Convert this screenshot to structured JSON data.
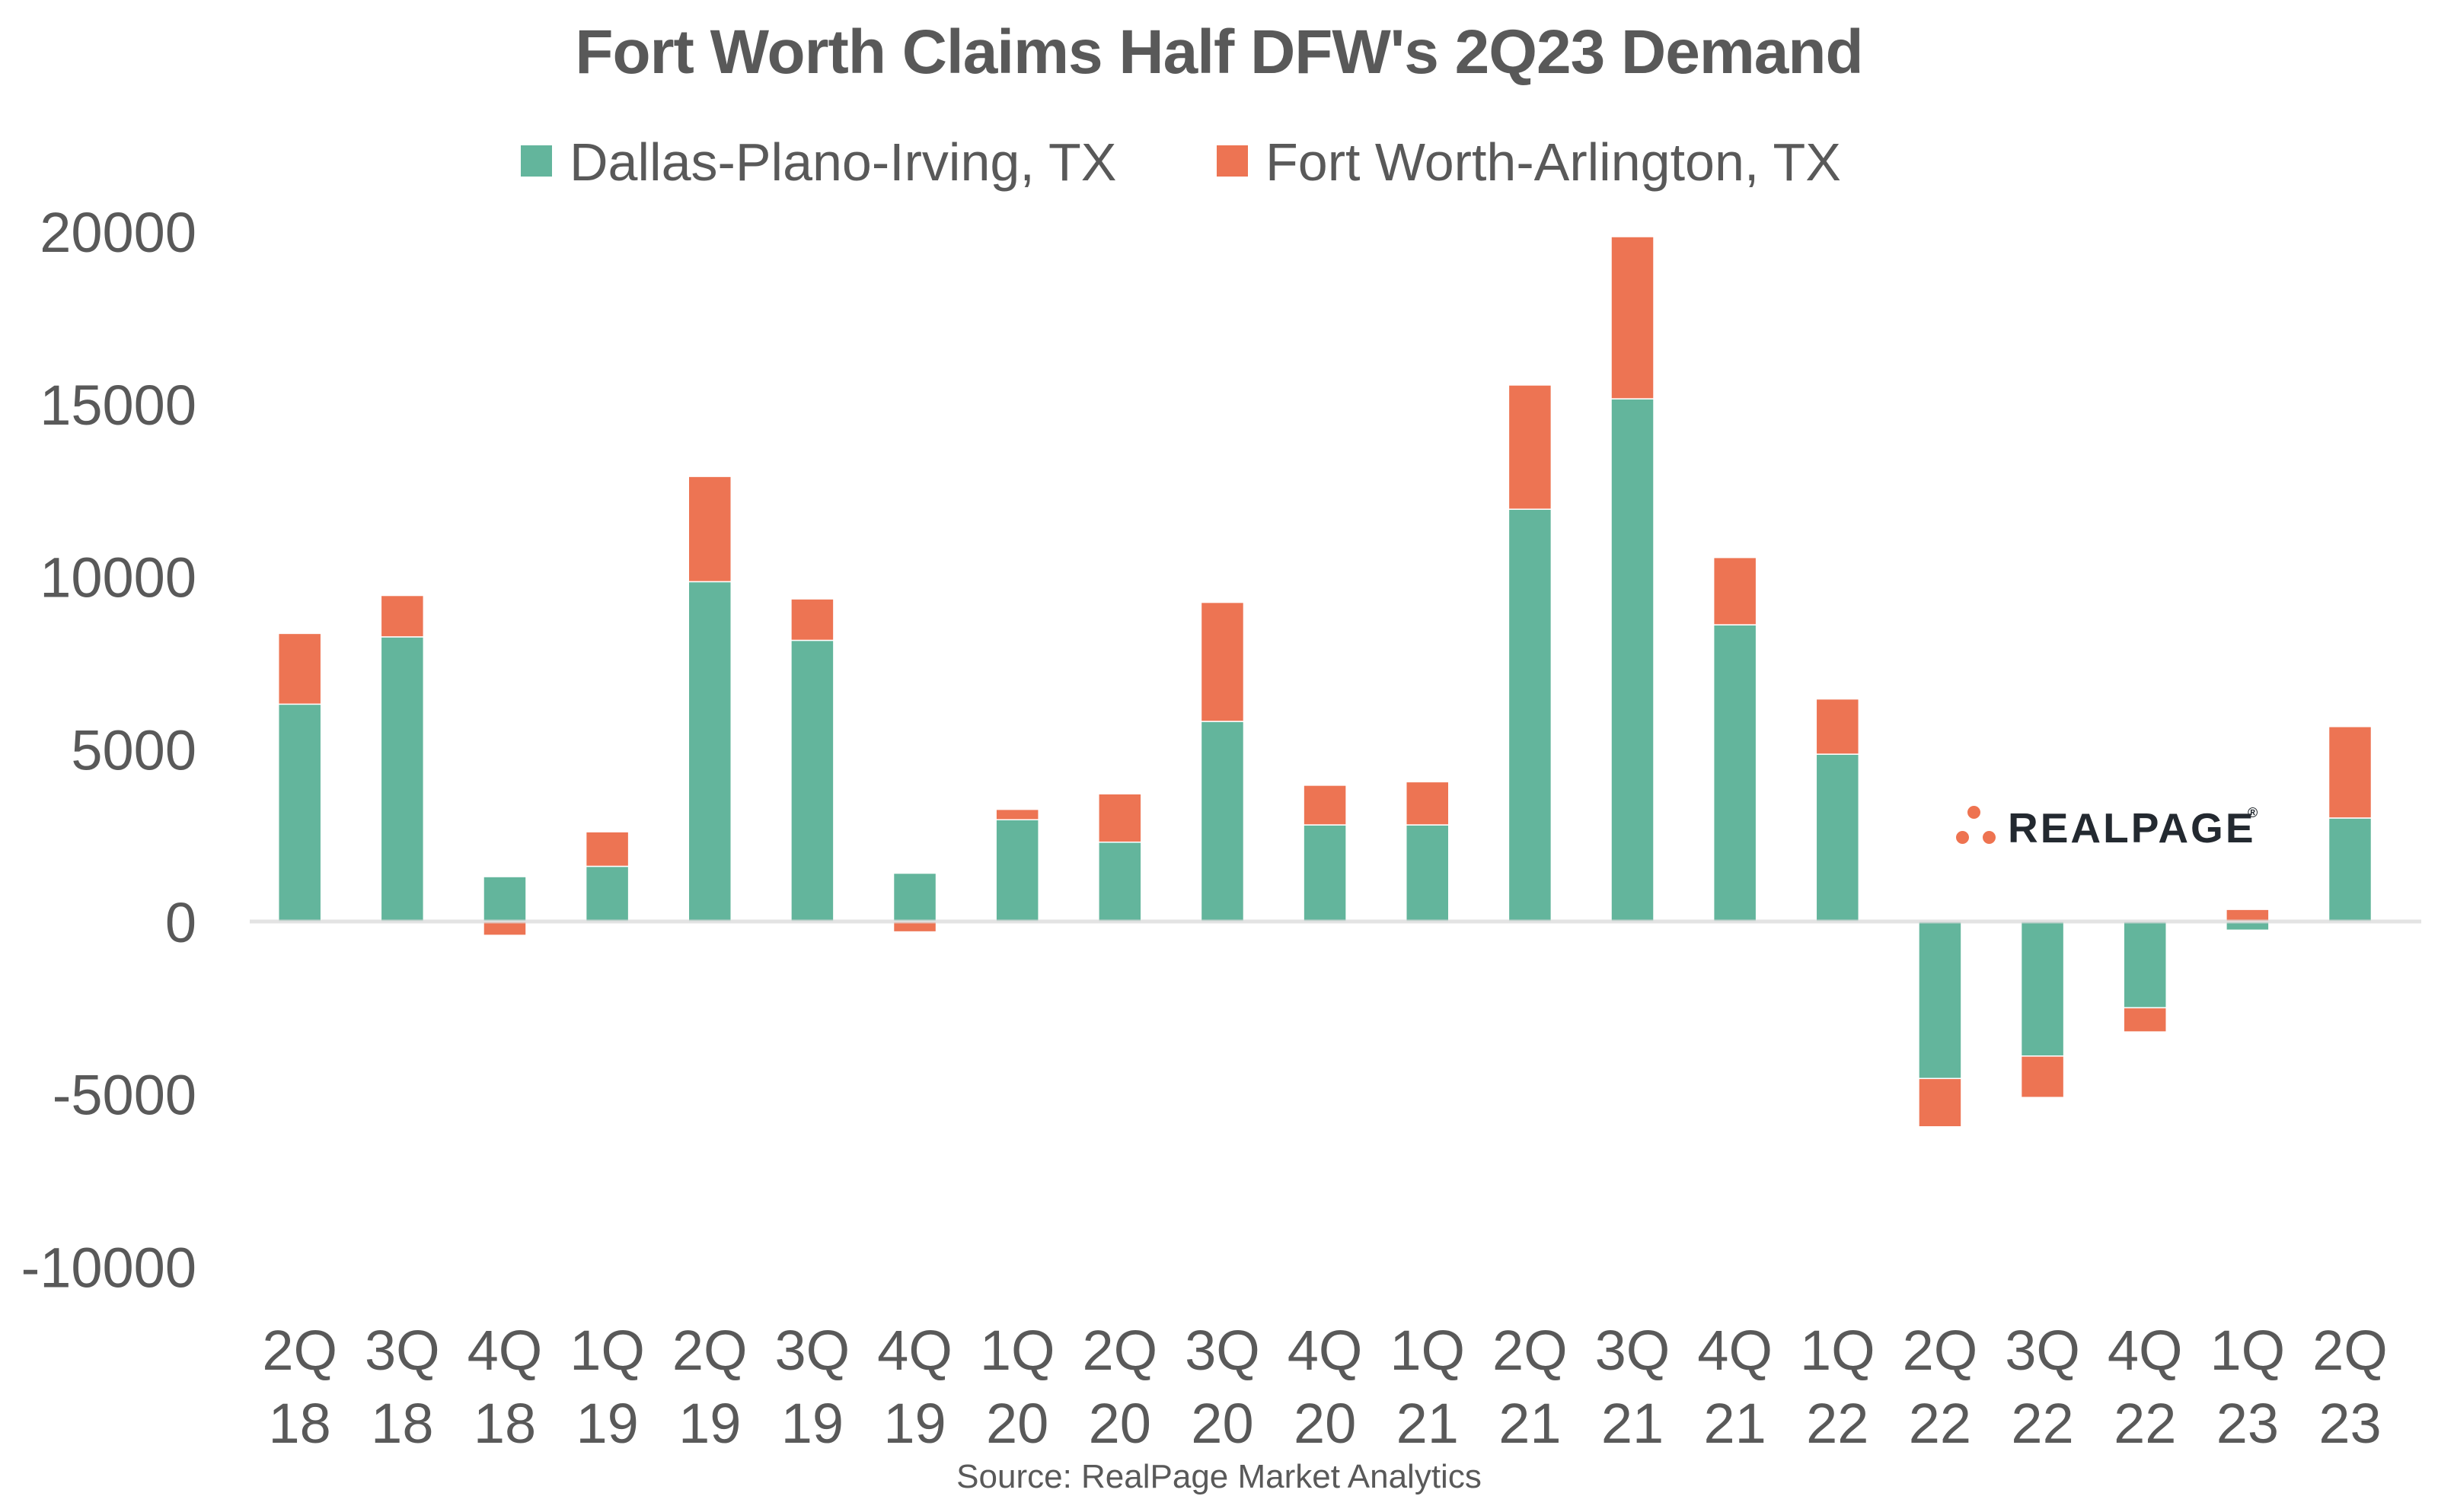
{
  "title": "Fort Worth Claims Half DFW's 2Q23 Demand",
  "source": "Source: RealPage Market Analytics",
  "logo": {
    "text": "REALPAGE",
    "registered": "®",
    "dot_color": "#EE7350",
    "text_color": "#232930"
  },
  "colors": {
    "text_gray": "#595959",
    "axis_line": "#D9D9D9",
    "background": "#FFFFFF",
    "dallas_teal": "#63B59C",
    "fortworth_orange": "#ED7453"
  },
  "chart_data": {
    "type": "bar",
    "stacked": true,
    "title": "Fort Worth Claims Half DFW's 2Q23 Demand",
    "xlabel": "",
    "ylabel": "",
    "grid": false,
    "legend_position": "top",
    "ylim": [
      -10000,
      20000
    ],
    "y_ticks": [
      20000,
      15000,
      10000,
      5000,
      0,
      -5000,
      -10000
    ],
    "categories": [
      {
        "quarter": "2Q",
        "year": "18"
      },
      {
        "quarter": "3Q",
        "year": "18"
      },
      {
        "quarter": "4Q",
        "year": "18"
      },
      {
        "quarter": "1Q",
        "year": "19"
      },
      {
        "quarter": "2Q",
        "year": "19"
      },
      {
        "quarter": "3Q",
        "year": "19"
      },
      {
        "quarter": "4Q",
        "year": "19"
      },
      {
        "quarter": "1Q",
        "year": "20"
      },
      {
        "quarter": "2Q",
        "year": "20"
      },
      {
        "quarter": "3Q",
        "year": "20"
      },
      {
        "quarter": "4Q",
        "year": "20"
      },
      {
        "quarter": "1Q",
        "year": "21"
      },
      {
        "quarter": "2Q",
        "year": "21"
      },
      {
        "quarter": "3Q",
        "year": "21"
      },
      {
        "quarter": "4Q",
        "year": "21"
      },
      {
        "quarter": "1Q",
        "year": "22"
      },
      {
        "quarter": "2Q",
        "year": "22"
      },
      {
        "quarter": "3Q",
        "year": "22"
      },
      {
        "quarter": "4Q",
        "year": "22"
      },
      {
        "quarter": "1Q",
        "year": "23"
      },
      {
        "quarter": "2Q",
        "year": "23"
      }
    ],
    "series": [
      {
        "name": "Dallas-Plano-Irving, TX",
        "color": "#63B59C",
        "values": [
          6300,
          8250,
          1300,
          1600,
          9850,
          8150,
          1400,
          2950,
          2300,
          5800,
          2800,
          2800,
          11950,
          15150,
          8600,
          4850,
          -4550,
          -3900,
          -2500,
          -250,
          3000
        ]
      },
      {
        "name": "Fort Worth-Arlington, TX",
        "color": "#ED7453",
        "values": [
          2050,
          1200,
          -400,
          1000,
          3050,
          1200,
          -300,
          300,
          1400,
          3450,
          1150,
          1250,
          3600,
          4700,
          1950,
          1600,
          -1400,
          -1200,
          -700,
          350,
          2650
        ]
      }
    ]
  }
}
